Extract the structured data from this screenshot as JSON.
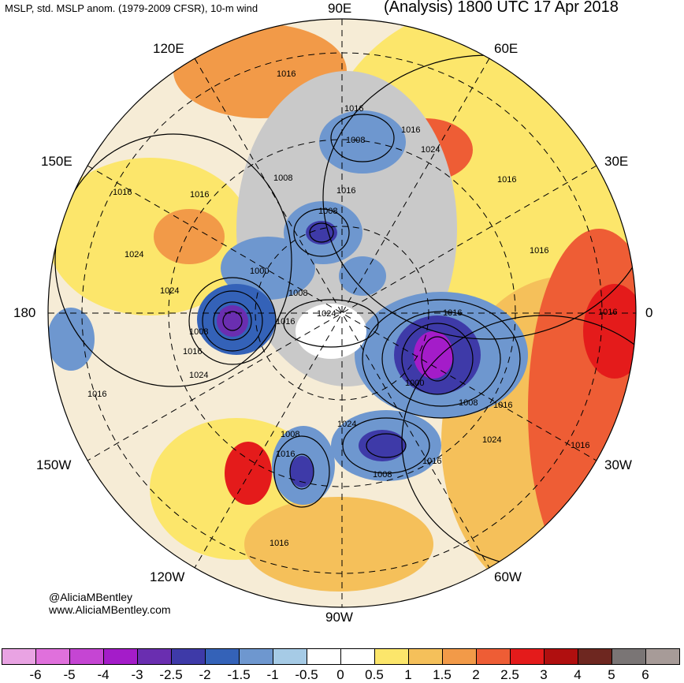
{
  "header": {
    "left_title": "MSLP, std. MSLP anom. (1979-2009 CFSR), 10-m wind",
    "right_title": "(Analysis) 1800 UTC 17 Apr 2018"
  },
  "credits": {
    "twitter": "@AliciaMBentley",
    "website": "www.AliciaMBentley.com"
  },
  "longitude_labels": {
    "e90": "90E",
    "e60": "60E",
    "e30": "30E",
    "zero": "0",
    "w30": "30W",
    "w60": "60W",
    "w90": "90W",
    "w120": "120W",
    "w150": "150W",
    "d180": "180",
    "e150": "150E",
    "e120": "120E"
  },
  "isobar_labels": [
    "1016",
    "1016",
    "1008",
    "1016",
    "1024",
    "1016",
    "1016",
    "1016",
    "1008",
    "1016",
    "1008",
    "1024",
    "1000",
    "1008",
    "1016",
    "1024",
    "1016",
    "1008",
    "1016",
    "1024",
    "1016",
    "1016",
    "1000",
    "1008",
    "1016",
    "1024",
    "1016",
    "1008",
    "1024",
    "1016",
    "1008",
    "1016",
    "1024",
    "1016",
    "1016"
  ],
  "colorbar": {
    "colors": [
      "#e9a3e3",
      "#e070dc",
      "#c545d3",
      "#a41cc9",
      "#6a2eb0",
      "#3e3aa8",
      "#3462b8",
      "#6e97cf",
      "#a6cbe6",
      "#ffffff",
      "#ffffff",
      "#fce66b",
      "#f5c05a",
      "#f29a48",
      "#ee5d35",
      "#e41b1b",
      "#b00f0f",
      "#6e2720",
      "#7a7575",
      "#a79b98"
    ],
    "ticks": [
      "-6",
      "-5",
      "-4",
      "-3",
      "-2.5",
      "-2",
      "-1.5",
      "-1",
      "-0.5",
      "0",
      "0.5",
      "1",
      "1.5",
      "2",
      "2.5",
      "3",
      "4",
      "5",
      "6"
    ]
  }
}
